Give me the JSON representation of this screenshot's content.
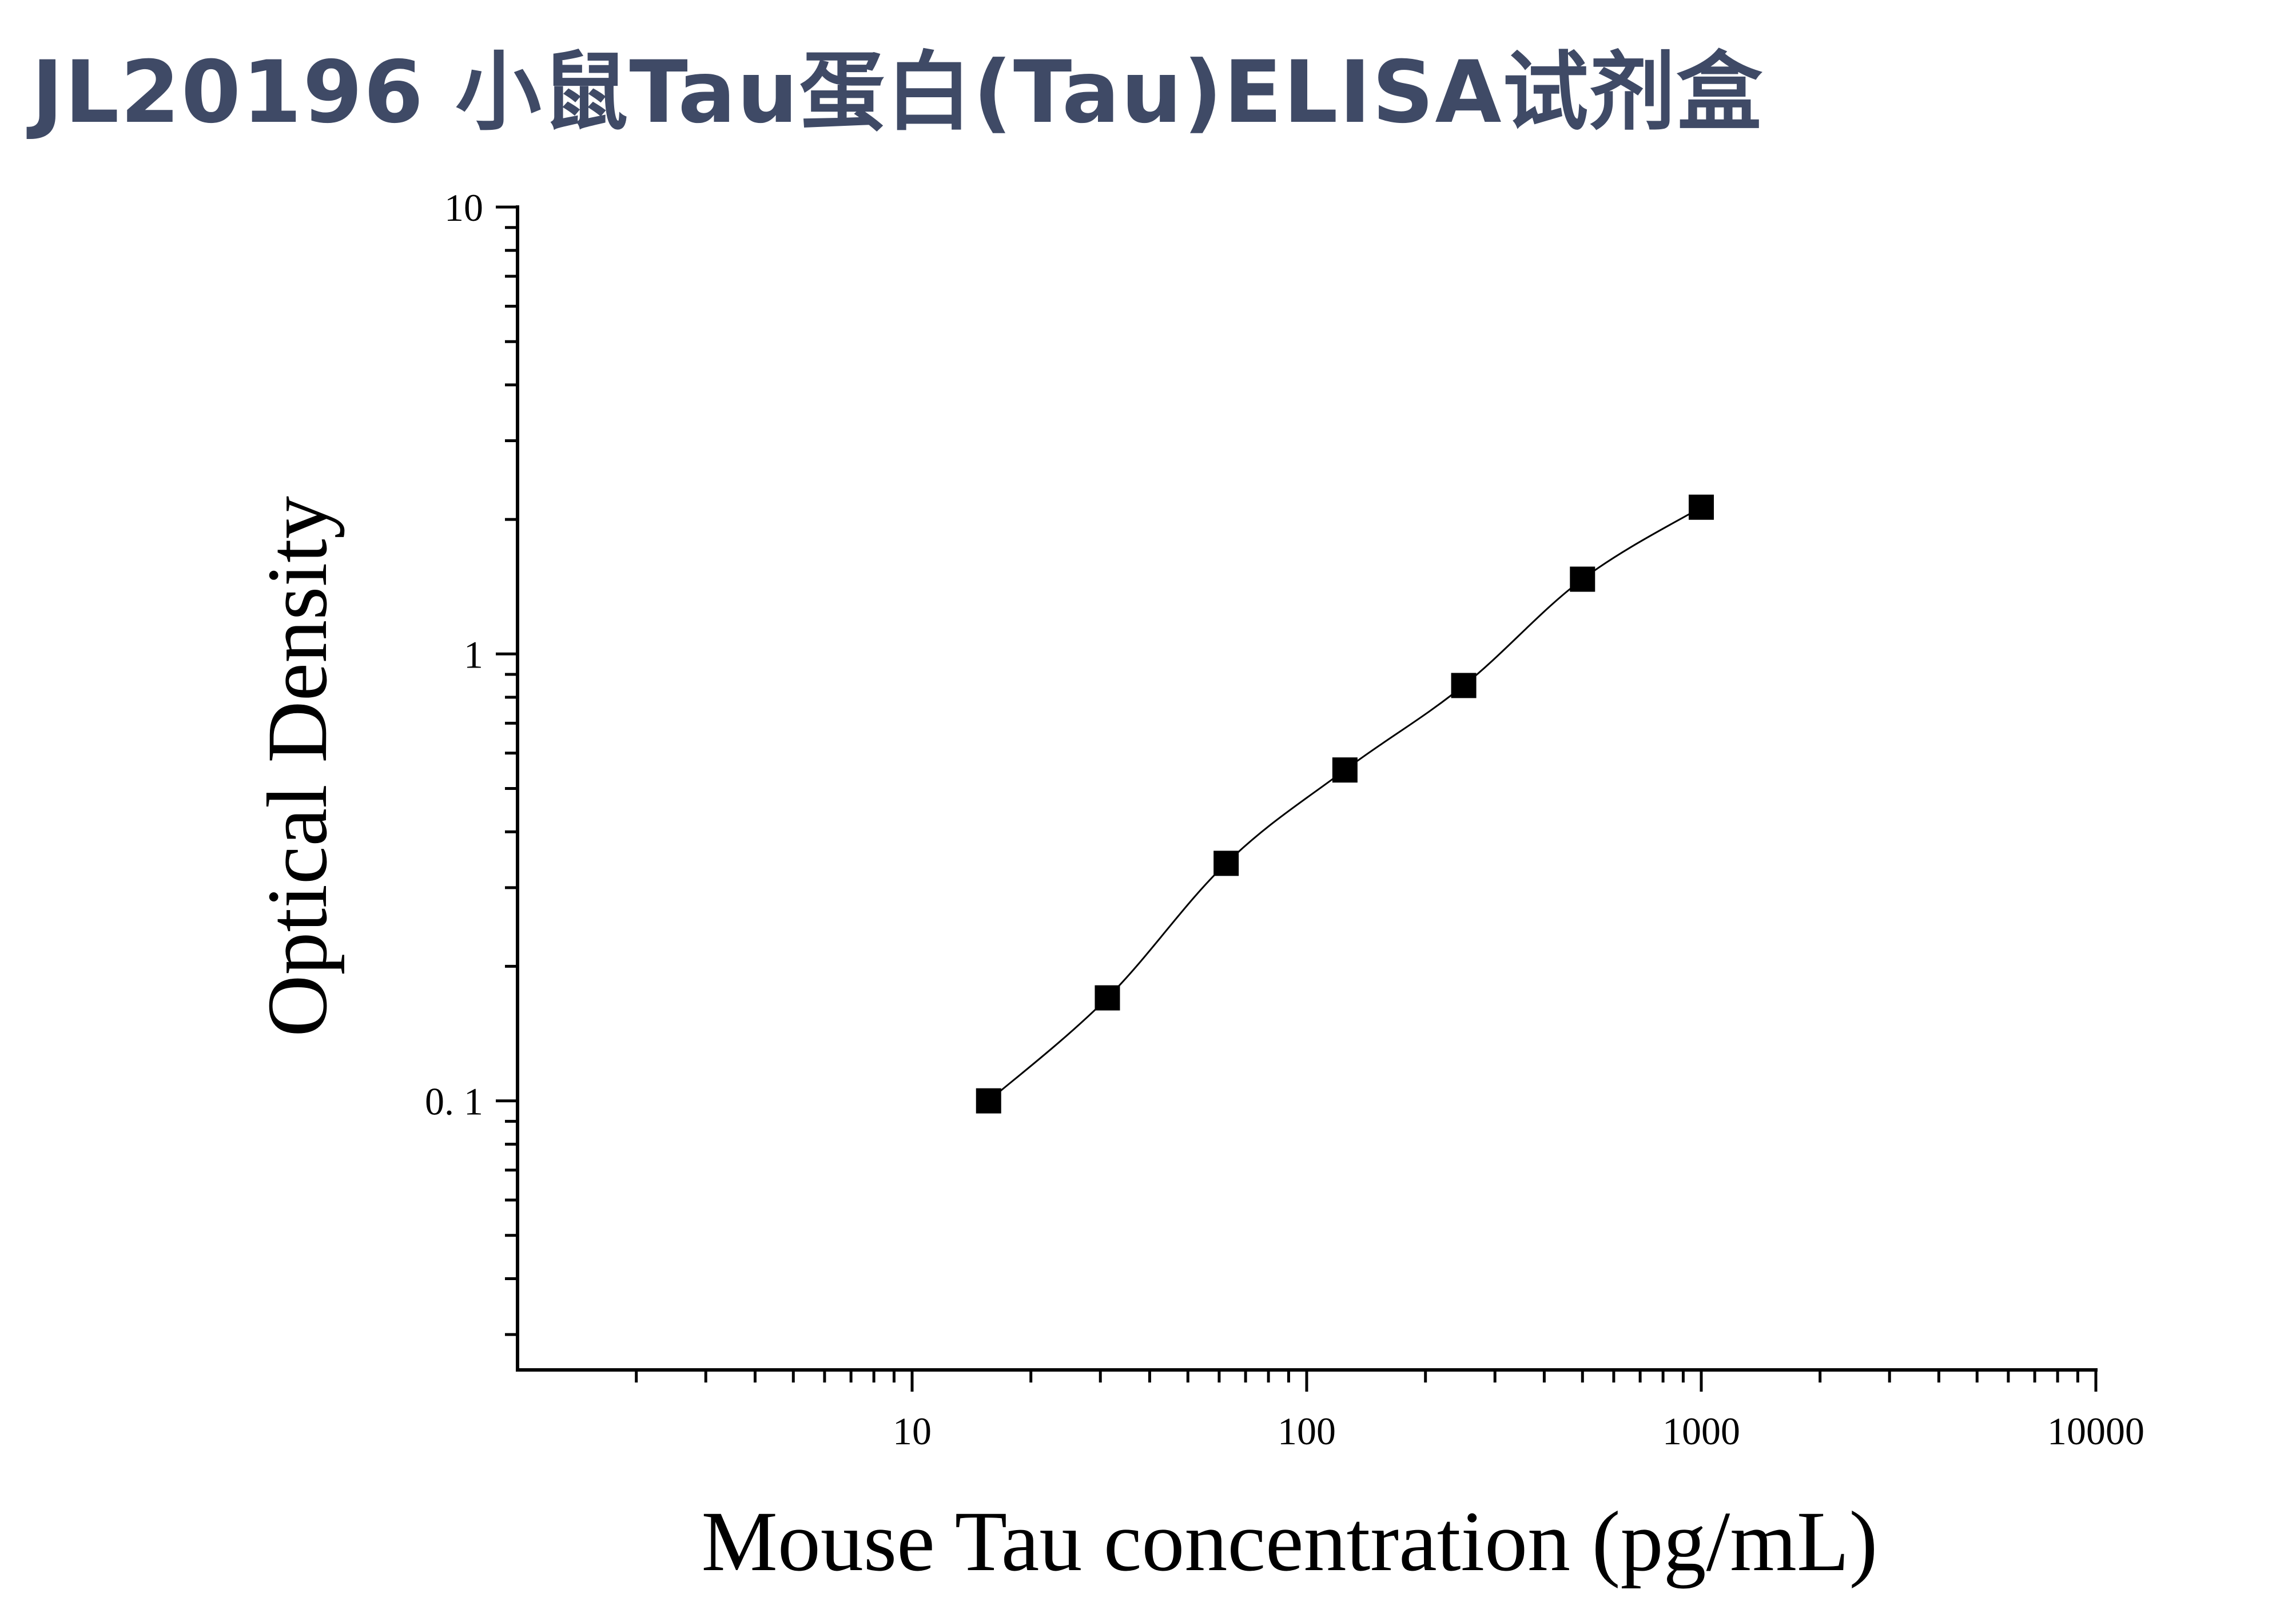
{
  "title": "JL20196 小鼠Tau蛋白(Tau)ELISA试剂盒",
  "chart_data": {
    "type": "scatter",
    "xlabel": "Mouse Tau concentration (pg/mL)",
    "ylabel": "Optical Density",
    "xscale": "log",
    "yscale": "log",
    "xlim": [
      1,
      10000
    ],
    "ylim": [
      0.025,
      10
    ],
    "xticks": [
      {
        "value": 10,
        "label": "10"
      },
      {
        "value": 100,
        "label": "100"
      },
      {
        "value": 1000,
        "label": "1000"
      },
      {
        "value": 10000,
        "label": "10000"
      }
    ],
    "yticks": [
      {
        "value": 0.1,
        "label": "0. 1"
      },
      {
        "value": 1,
        "label": "1"
      },
      {
        "value": 10,
        "label": "10"
      }
    ],
    "grid": false,
    "series": [
      {
        "marker": "square",
        "color": "#000000",
        "x": [
          15.625,
          31.25,
          62.5,
          125,
          250,
          500,
          1000
        ],
        "y": [
          0.1,
          0.17,
          0.34,
          0.55,
          0.85,
          1.47,
          2.13
        ]
      }
    ],
    "fit_curve": {
      "color": "#000000",
      "x_range": [
        15.625,
        1000
      ]
    }
  }
}
